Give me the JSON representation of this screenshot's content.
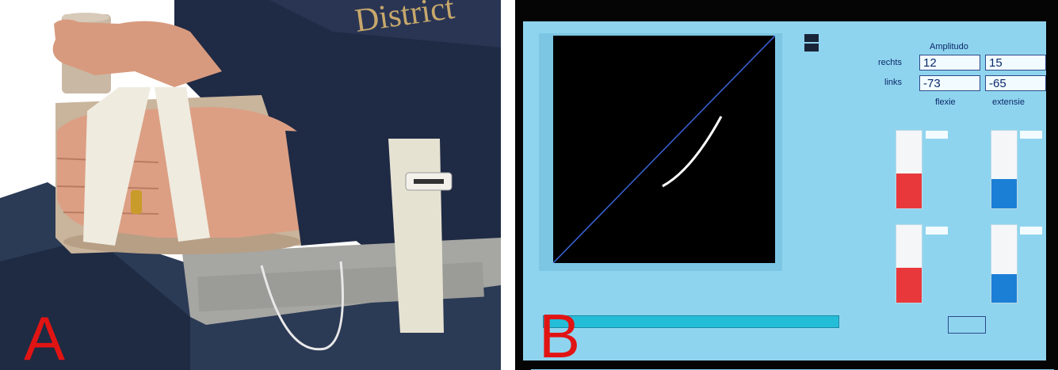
{
  "panels": {
    "a": {
      "letter": "A"
    },
    "b": {
      "letter": "B"
    }
  },
  "screen": {
    "amplitude_title": "Amplitudo",
    "row_labels": {
      "right": "rechts",
      "left": "links"
    },
    "values": {
      "right_flexion": "12",
      "right_extension": "15",
      "left_flexion": "-73",
      "left_extension": "-65"
    },
    "column_labels": {
      "flexion": "flexie",
      "extension": "extensie"
    },
    "gauges": {
      "top_left_fill": 0.45,
      "top_right_fill": 0.38,
      "bottom_left_fill": 0.45,
      "bottom_right_fill": 0.37
    }
  },
  "colors": {
    "screen_bg": "#8fd4ee",
    "letter_red": "#e11414",
    "gauge_red": "#e8383c",
    "gauge_blue": "#1c7fd6",
    "plot_bg": "#000000",
    "diagonal_line": "#3a63d6",
    "trace_line": "#ffffff"
  }
}
